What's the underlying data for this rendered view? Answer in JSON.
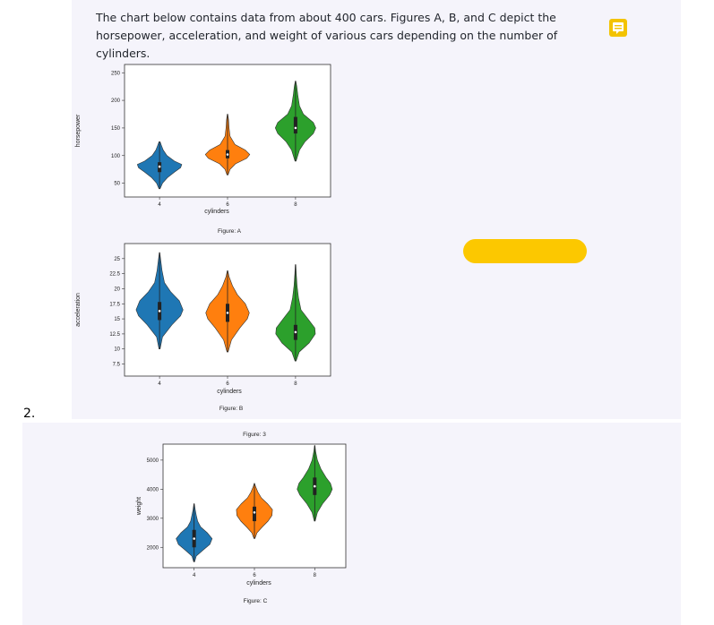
{
  "intro_text": "The chart below contains data from about 400 cars. Figures A, B, and C depict the horsepower, acceleration, and weight of various cars depending on the number of cylinders.",
  "item_number": "2.",
  "note_icon": "comment-icon",
  "colors": {
    "4": "#1f77b4",
    "6": "#ff7f0e",
    "8": "#2ca02c",
    "button": "#fcc800",
    "note": "#f3c300"
  },
  "chart_data": [
    {
      "type": "violin",
      "caption": "Figure: A",
      "xlabel": "cylinders",
      "ylabel": "horsepower",
      "categories": [
        "4",
        "6",
        "8"
      ],
      "yticks": [
        50,
        100,
        150,
        200,
        250
      ],
      "ylim": [
        25,
        265
      ],
      "violins": [
        {
          "category": "4",
          "min": 40,
          "max": 125,
          "q1": 70,
          "median": 80,
          "q3": 88,
          "shape": [
            [
              40,
              0.02
            ],
            [
              50,
              0.12
            ],
            [
              60,
              0.32
            ],
            [
              70,
              0.6
            ],
            [
              78,
              0.85
            ],
            [
              84,
              0.9
            ],
            [
              90,
              0.6
            ],
            [
              100,
              0.3
            ],
            [
              110,
              0.15
            ],
            [
              118,
              0.08
            ],
            [
              125,
              0.02
            ]
          ]
        },
        {
          "category": "6",
          "min": 65,
          "max": 175,
          "q1": 95,
          "median": 102,
          "q3": 110,
          "shape": [
            [
              65,
              0.02
            ],
            [
              75,
              0.1
            ],
            [
              85,
              0.32
            ],
            [
              95,
              0.78
            ],
            [
              102,
              0.9
            ],
            [
              110,
              0.72
            ],
            [
              120,
              0.3
            ],
            [
              135,
              0.1
            ],
            [
              150,
              0.06
            ],
            [
              165,
              0.04
            ],
            [
              175,
              0.01
            ]
          ]
        },
        {
          "category": "8",
          "min": 90,
          "max": 235,
          "q1": 140,
          "median": 150,
          "q3": 170,
          "shape": [
            [
              90,
              0.02
            ],
            [
              110,
              0.16
            ],
            [
              125,
              0.38
            ],
            [
              140,
              0.72
            ],
            [
              150,
              0.82
            ],
            [
              160,
              0.72
            ],
            [
              175,
              0.32
            ],
            [
              190,
              0.16
            ],
            [
              210,
              0.09
            ],
            [
              225,
              0.05
            ],
            [
              235,
              0.01
            ]
          ]
        }
      ]
    },
    {
      "type": "violin",
      "caption": "Figure: B",
      "xlabel": "cylinders",
      "ylabel": "acceleration",
      "categories": [
        "4",
        "6",
        "8"
      ],
      "yticks": [
        7.5,
        10.0,
        12.5,
        15.0,
        17.5,
        20.0,
        22.5,
        25.0
      ],
      "ylim": [
        5.5,
        27.5
      ],
      "violins": [
        {
          "category": "4",
          "min": 10.0,
          "max": 26.0,
          "q1": 14.8,
          "median": 16.3,
          "q3": 17.8,
          "shape": [
            [
              10.0,
              0.02
            ],
            [
              12.0,
              0.12
            ],
            [
              14.0,
              0.5
            ],
            [
              15.5,
              0.85
            ],
            [
              16.5,
              0.95
            ],
            [
              18.0,
              0.8
            ],
            [
              19.5,
              0.45
            ],
            [
              21.0,
              0.2
            ],
            [
              23.0,
              0.1
            ],
            [
              25.0,
              0.04
            ],
            [
              26.0,
              0.01
            ]
          ]
        },
        {
          "category": "6",
          "min": 9.5,
          "max": 23.0,
          "q1": 14.5,
          "median": 16.0,
          "q3": 17.5,
          "shape": [
            [
              9.5,
              0.02
            ],
            [
              11.5,
              0.16
            ],
            [
              13.5,
              0.5
            ],
            [
              15.0,
              0.8
            ],
            [
              16.0,
              0.88
            ],
            [
              17.5,
              0.72
            ],
            [
              19.0,
              0.4
            ],
            [
              20.5,
              0.2
            ],
            [
              22.0,
              0.06
            ],
            [
              23.0,
              0.01
            ]
          ]
        },
        {
          "category": "8",
          "min": 8.0,
          "max": 24.0,
          "q1": 11.5,
          "median": 12.8,
          "q3": 14.0,
          "shape": [
            [
              8.0,
              0.02
            ],
            [
              9.5,
              0.15
            ],
            [
              11.0,
              0.55
            ],
            [
              12.5,
              0.8
            ],
            [
              13.5,
              0.78
            ],
            [
              15.0,
              0.5
            ],
            [
              16.5,
              0.22
            ],
            [
              18.5,
              0.12
            ],
            [
              20.5,
              0.06
            ],
            [
              22.5,
              0.03
            ],
            [
              24.0,
              0.01
            ]
          ]
        }
      ]
    },
    {
      "type": "violin",
      "caption": "Figure: C",
      "title": "Figure: 3",
      "xlabel": "cylinders",
      "ylabel": "weight",
      "categories": [
        "4",
        "6",
        "8"
      ],
      "yticks": [
        2000,
        3000,
        4000,
        5000
      ],
      "ylim": [
        1300,
        5550
      ],
      "violins": [
        {
          "category": "4",
          "min": 1500,
          "max": 3500,
          "q1": 2000,
          "median": 2300,
          "q3": 2600,
          "shape": [
            [
              1500,
              0.02
            ],
            [
              1700,
              0.1
            ],
            [
              1900,
              0.4
            ],
            [
              2100,
              0.72
            ],
            [
              2300,
              0.82
            ],
            [
              2500,
              0.6
            ],
            [
              2700,
              0.3
            ],
            [
              2900,
              0.16
            ],
            [
              3100,
              0.1
            ],
            [
              3300,
              0.05
            ],
            [
              3500,
              0.01
            ]
          ]
        },
        {
          "category": "6",
          "min": 2300,
          "max": 4200,
          "q1": 2900,
          "median": 3200,
          "q3": 3400,
          "shape": [
            [
              2300,
              0.02
            ],
            [
              2500,
              0.12
            ],
            [
              2700,
              0.36
            ],
            [
              2900,
              0.62
            ],
            [
              3100,
              0.8
            ],
            [
              3300,
              0.82
            ],
            [
              3500,
              0.6
            ],
            [
              3700,
              0.32
            ],
            [
              3900,
              0.16
            ],
            [
              4100,
              0.05
            ],
            [
              4200,
              0.01
            ]
          ]
        },
        {
          "category": "8",
          "min": 2900,
          "max": 5500,
          "q1": 3800,
          "median": 4100,
          "q3": 4400,
          "shape": [
            [
              2900,
              0.02
            ],
            [
              3200,
              0.12
            ],
            [
              3500,
              0.36
            ],
            [
              3800,
              0.68
            ],
            [
              4000,
              0.8
            ],
            [
              4200,
              0.72
            ],
            [
              4400,
              0.52
            ],
            [
              4700,
              0.28
            ],
            [
              5000,
              0.12
            ],
            [
              5300,
              0.04
            ],
            [
              5500,
              0.01
            ]
          ]
        }
      ]
    }
  ]
}
